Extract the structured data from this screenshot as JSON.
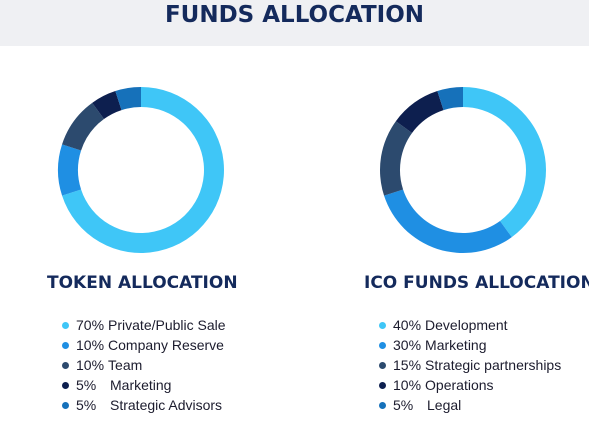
{
  "page": {
    "title": "FUNDS ALLOCATION"
  },
  "chart_data": [
    {
      "type": "pie",
      "title": "TOKEN ALLOCATION",
      "categories": [
        "Private/Public Sale",
        "Company Reserve",
        "Team",
        "Marketing",
        "Strategic Advisors"
      ],
      "values": [
        70,
        10,
        10,
        5,
        5
      ],
      "legend_text": [
        "70% Private/Public Sale",
        "10% Company Reserve",
        "10% Team",
        "5%   Marketing",
        "5%   Strategic Advisors"
      ],
      "pct_text": [
        "70%",
        "10%",
        "10%",
        "5%",
        "5%"
      ],
      "label_text": [
        "Private/Public Sale",
        "Company Reserve",
        "Team",
        "Marketing",
        "Strategic Advisors"
      ],
      "colors": [
        "#3fc6f7",
        "#1f8fe3",
        "#2c4a6e",
        "#0d1f4f",
        "#1671ba"
      ],
      "legend_position": "bottom"
    },
    {
      "type": "pie",
      "title": "ICO FUNDS ALLOCATION",
      "categories": [
        "Development",
        "Marketing",
        "Strategic partnerships",
        "Operations",
        "Legal"
      ],
      "values": [
        40,
        30,
        15,
        10,
        5
      ],
      "pct_text": [
        "40%",
        "30%",
        "15%",
        "10%",
        "5%"
      ],
      "label_text": [
        "Development",
        "Marketing",
        "Strategic partnerships",
        "Operations",
        "Legal"
      ],
      "colors": [
        "#3fc6f7",
        "#1f8fe3",
        "#2c4a6e",
        "#0d1f4f",
        "#1671ba"
      ],
      "legend_position": "bottom"
    }
  ]
}
